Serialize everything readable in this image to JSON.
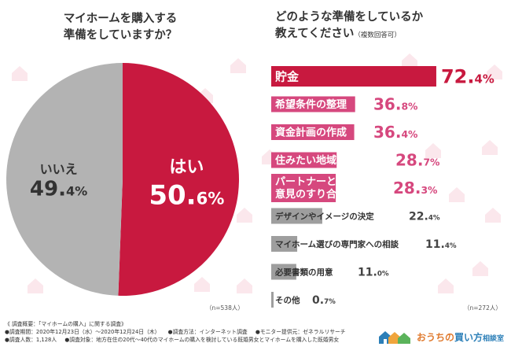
{
  "pie_title": [
    "マイホームを購入する",
    "準備をしていますか？"
  ],
  "bar_title": [
    "どのような準備をしているか",
    "教えてください"
  ],
  "bar_title_note": "（複数回答可）",
  "pie_n": "（n=538人）",
  "bar_n": "（n=272人）",
  "footer": {
    "line1": "《 調査概要：「マイホームの購入」に関する調査》",
    "line2": [
      "●調査期間：2020年12月23日（水）～2020年12月24日（木）",
      "●調査方法：インターネット調査",
      "●モニター提供元：ゼネラルリサーチ"
    ],
    "line3": [
      "●調査人数：1,128人",
      "●調査対象：地方在住の20代～40代のマイホームの購入を検討している既婚男女とマイホームを購入した既婚男女"
    ]
  },
  "logo": {
    "part1": "おうちの",
    "part2": "買い方",
    "part3": "相談室"
  },
  "colors": {
    "yes": "#c8193f",
    "no": "#b3b3b3",
    "pink": "#d6487e",
    "gray": "#9e9e9e",
    "house": "#fbe7ec"
  },
  "chart_data": [
    {
      "type": "pie",
      "title": "マイホームを購入する準備をしていますか？",
      "slices": [
        {
          "label": "はい",
          "value": 50.6,
          "int": "50.",
          "dec": "6",
          "unit": "%"
        },
        {
          "label": "いいえ",
          "value": 49.4,
          "int": "49.",
          "dec": "4",
          "unit": "%"
        }
      ]
    },
    {
      "type": "bar",
      "title": "どのような準備をしているか教えてください（複数回答可）",
      "unit": "%",
      "xlim": [
        0,
        100
      ],
      "items": [
        {
          "label": [
            "貯金"
          ],
          "value": 72.4,
          "int": "72.",
          "dec": "4",
          "style": "top"
        },
        {
          "label": [
            "希望条件の整理"
          ],
          "value": 36.8,
          "int": "36.",
          "dec": "8",
          "style": "pink"
        },
        {
          "label": [
            "資金計画の作成"
          ],
          "value": 36.4,
          "int": "36.",
          "dec": "4",
          "style": "pink"
        },
        {
          "label": [
            "住みたい地域の見学"
          ],
          "value": 28.7,
          "int": "28.",
          "dec": "7",
          "style": "pink"
        },
        {
          "label": [
            "パートナーと",
            "意見のすり合わせ"
          ],
          "value": 28.3,
          "int": "28.",
          "dec": "3",
          "style": "pink"
        },
        {
          "label": [
            "デザインやイメージの決定"
          ],
          "value": 22.4,
          "int": "22.",
          "dec": "4",
          "style": "gray"
        },
        {
          "label": [
            "マイホーム選びの専門家への相談"
          ],
          "value": 11.4,
          "int": "11.",
          "dec": "4",
          "style": "gray"
        },
        {
          "label": [
            "必要書類の用意"
          ],
          "value": 11.0,
          "int": "11.",
          "dec": "0",
          "style": "gray"
        },
        {
          "label": [
            "その他"
          ],
          "value": 0.7,
          "int": "0.",
          "dec": "7",
          "style": "gray"
        }
      ]
    }
  ]
}
